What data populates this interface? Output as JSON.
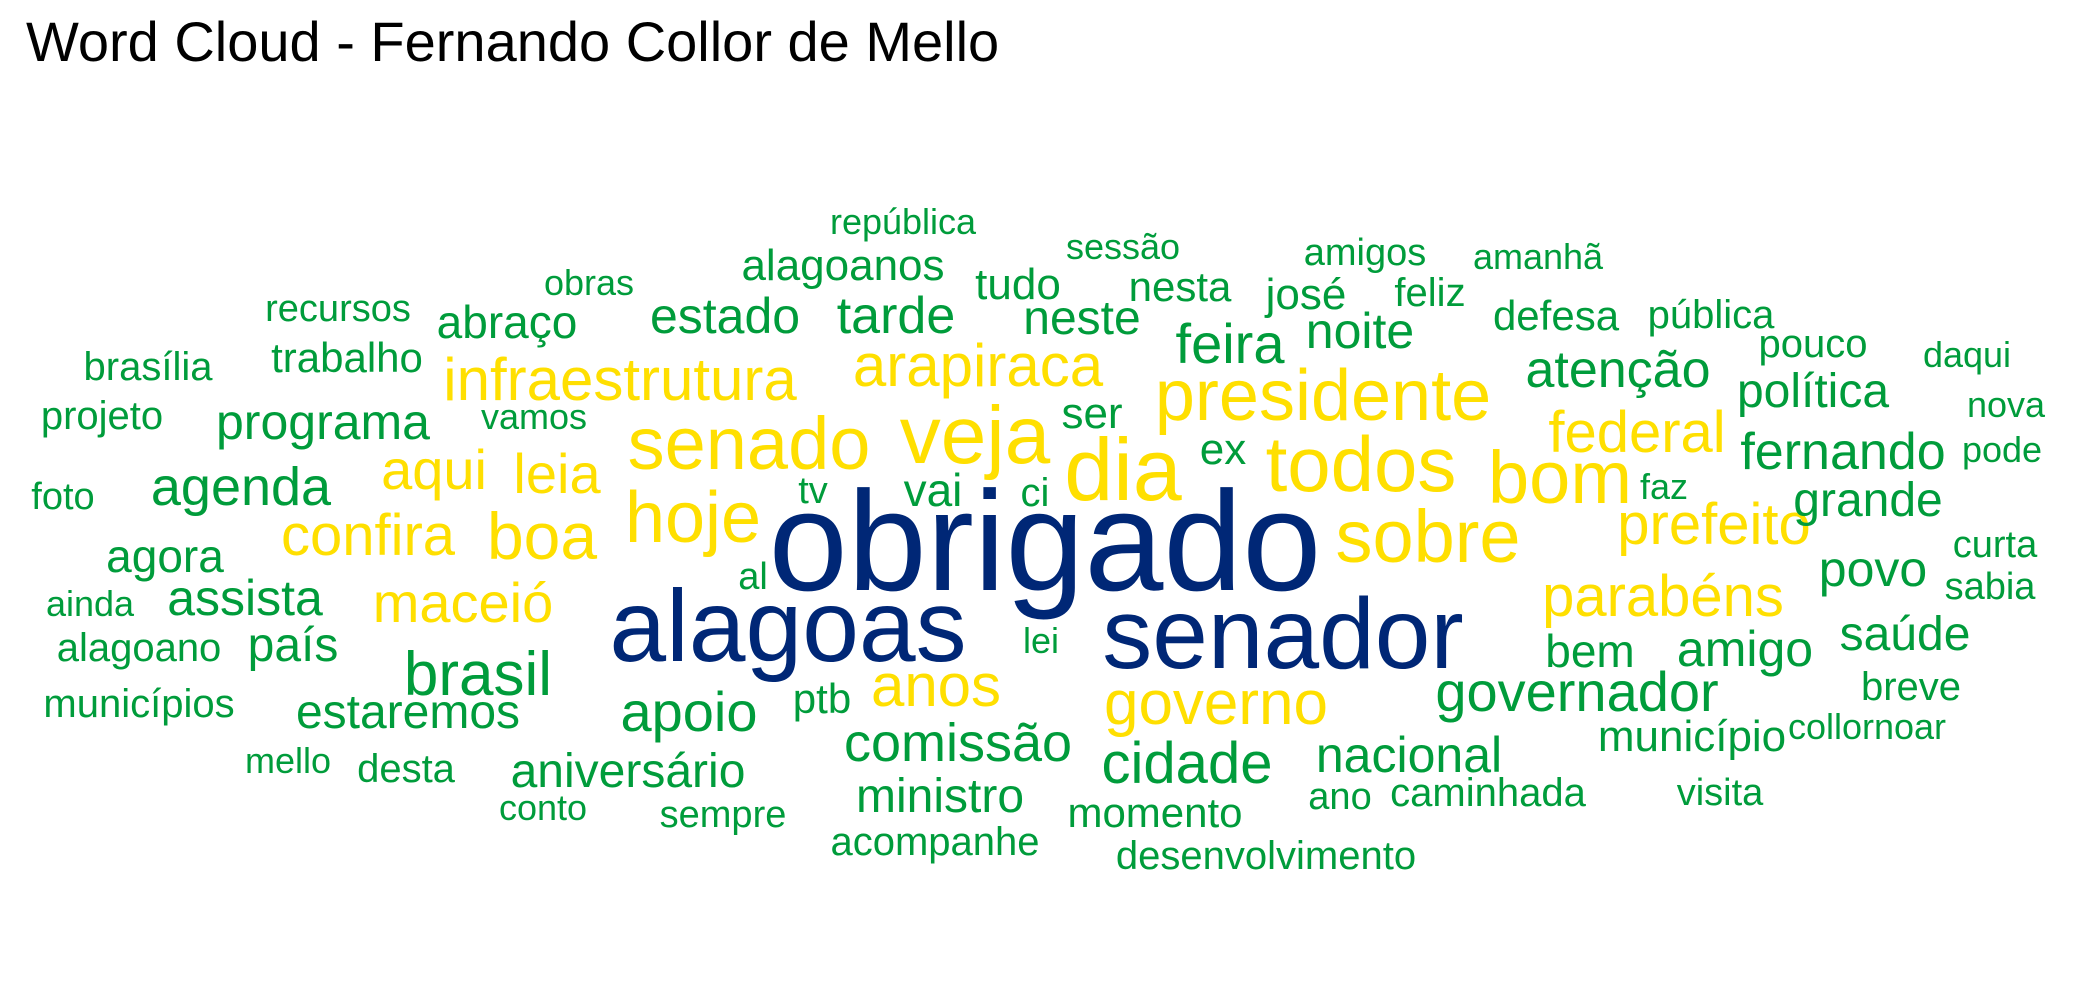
{
  "title": "Word Cloud - Fernando Collor de Mello",
  "colors": {
    "high": "#002776",
    "mid": "#FFDF00",
    "low": "#009C3B"
  },
  "words": [
    {
      "text": "obrigado",
      "tier": "high"
    },
    {
      "text": "alagoas",
      "tier": "high"
    },
    {
      "text": "senador",
      "tier": "high"
    },
    {
      "text": "presidente",
      "tier": "mid"
    },
    {
      "text": "dia",
      "tier": "mid"
    },
    {
      "text": "todos",
      "tier": "mid"
    },
    {
      "text": "bom",
      "tier": "mid"
    },
    {
      "text": "senado",
      "tier": "mid"
    },
    {
      "text": "veja",
      "tier": "mid"
    },
    {
      "text": "hoje",
      "tier": "mid"
    },
    {
      "text": "sobre",
      "tier": "mid"
    },
    {
      "text": "infraestrutura",
      "tier": "mid"
    },
    {
      "text": "arapiraca",
      "tier": "mid"
    },
    {
      "text": "federal",
      "tier": "mid"
    },
    {
      "text": "prefeito",
      "tier": "mid"
    },
    {
      "text": "parabéns",
      "tier": "mid"
    },
    {
      "text": "governo",
      "tier": "mid"
    },
    {
      "text": "anos",
      "tier": "mid"
    },
    {
      "text": "boa",
      "tier": "mid"
    },
    {
      "text": "confira",
      "tier": "mid"
    },
    {
      "text": "aqui",
      "tier": "mid"
    },
    {
      "text": "leia",
      "tier": "mid"
    },
    {
      "text": "maceió",
      "tier": "mid"
    },
    {
      "text": "república",
      "tier": "low"
    },
    {
      "text": "sessão",
      "tier": "low"
    },
    {
      "text": "amigos",
      "tier": "low"
    },
    {
      "text": "amanhã",
      "tier": "low"
    },
    {
      "text": "alagoanos",
      "tier": "low"
    },
    {
      "text": "obras",
      "tier": "low"
    },
    {
      "text": "tudo",
      "tier": "low"
    },
    {
      "text": "nesta",
      "tier": "low"
    },
    {
      "text": "josé",
      "tier": "low"
    },
    {
      "text": "feliz",
      "tier": "low"
    },
    {
      "text": "recursos",
      "tier": "low"
    },
    {
      "text": "abraço",
      "tier": "low"
    },
    {
      "text": "estado",
      "tier": "low"
    },
    {
      "text": "tarde",
      "tier": "low"
    },
    {
      "text": "neste",
      "tier": "low"
    },
    {
      "text": "defesa",
      "tier": "low"
    },
    {
      "text": "pública",
      "tier": "low"
    },
    {
      "text": "feira",
      "tier": "low"
    },
    {
      "text": "noite",
      "tier": "low"
    },
    {
      "text": "brasília",
      "tier": "low"
    },
    {
      "text": "trabalho",
      "tier": "low"
    },
    {
      "text": "pouco",
      "tier": "low"
    },
    {
      "text": "daqui",
      "tier": "low"
    },
    {
      "text": "atenção",
      "tier": "low"
    },
    {
      "text": "política",
      "tier": "low"
    },
    {
      "text": "projeto",
      "tier": "low"
    },
    {
      "text": "programa",
      "tier": "low"
    },
    {
      "text": "vamos",
      "tier": "low"
    },
    {
      "text": "ser",
      "tier": "low"
    },
    {
      "text": "nova",
      "tier": "low"
    },
    {
      "text": "fernando",
      "tier": "low"
    },
    {
      "text": "pode",
      "tier": "low"
    },
    {
      "text": "ex",
      "tier": "low"
    },
    {
      "text": "agenda",
      "tier": "low"
    },
    {
      "text": "foto",
      "tier": "low"
    },
    {
      "text": "tv",
      "tier": "low"
    },
    {
      "text": "vai",
      "tier": "low"
    },
    {
      "text": "ci",
      "tier": "low"
    },
    {
      "text": "faz",
      "tier": "low"
    },
    {
      "text": "grande",
      "tier": "low"
    },
    {
      "text": "agora",
      "tier": "low"
    },
    {
      "text": "curta",
      "tier": "low"
    },
    {
      "text": "al",
      "tier": "low"
    },
    {
      "text": "povo",
      "tier": "low"
    },
    {
      "text": "assista",
      "tier": "low"
    },
    {
      "text": "sabia",
      "tier": "low"
    },
    {
      "text": "ainda",
      "tier": "low"
    },
    {
      "text": "lei",
      "tier": "low"
    },
    {
      "text": "saúde",
      "tier": "low"
    },
    {
      "text": "alagoano",
      "tier": "low"
    },
    {
      "text": "país",
      "tier": "low"
    },
    {
      "text": "brasil",
      "tier": "low"
    },
    {
      "text": "bem",
      "tier": "low"
    },
    {
      "text": "amigo",
      "tier": "low"
    },
    {
      "text": "governador",
      "tier": "low"
    },
    {
      "text": "breve",
      "tier": "low"
    },
    {
      "text": "municípios",
      "tier": "low"
    },
    {
      "text": "estaremos",
      "tier": "low"
    },
    {
      "text": "apoio",
      "tier": "low"
    },
    {
      "text": "ptb",
      "tier": "low"
    },
    {
      "text": "collornoar",
      "tier": "low"
    },
    {
      "text": "comissão",
      "tier": "low"
    },
    {
      "text": "município",
      "tier": "low"
    },
    {
      "text": "cidade",
      "tier": "low"
    },
    {
      "text": "nacional",
      "tier": "low"
    },
    {
      "text": "mello",
      "tier": "low"
    },
    {
      "text": "desta",
      "tier": "low"
    },
    {
      "text": "aniversário",
      "tier": "low"
    },
    {
      "text": "ministro",
      "tier": "low"
    },
    {
      "text": "caminhada",
      "tier": "low"
    },
    {
      "text": "visita",
      "tier": "low"
    },
    {
      "text": "conto",
      "tier": "low"
    },
    {
      "text": "sempre",
      "tier": "low"
    },
    {
      "text": "ano",
      "tier": "low"
    },
    {
      "text": "momento",
      "tier": "low"
    },
    {
      "text": "acompanhe",
      "tier": "low"
    },
    {
      "text": "desenvolvimento",
      "tier": "low"
    }
  ]
}
